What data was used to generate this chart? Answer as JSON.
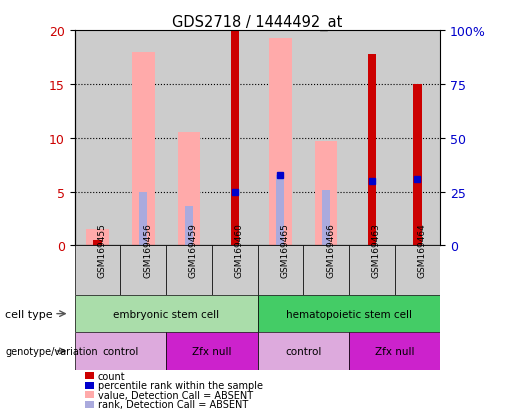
{
  "title": "GDS2718 / 1444492_at",
  "samples": [
    "GSM169455",
    "GSM169456",
    "GSM169459",
    "GSM169460",
    "GSM169465",
    "GSM169466",
    "GSM169463",
    "GSM169464"
  ],
  "pink_bar": [
    1.5,
    18.0,
    10.5,
    0,
    19.3,
    9.7,
    0,
    0
  ],
  "red_bar": [
    0.5,
    0,
    0,
    20.0,
    0,
    0,
    17.8,
    15.0
  ],
  "blue_val": [
    0,
    0,
    0,
    5.0,
    6.5,
    0,
    6.0,
    6.2
  ],
  "lblue_val": [
    0.2,
    5.0,
    3.7,
    0,
    6.5,
    5.1,
    0,
    0
  ],
  "has_pink": [
    true,
    true,
    true,
    false,
    true,
    true,
    false,
    false
  ],
  "has_red": [
    true,
    false,
    false,
    true,
    false,
    false,
    true,
    true
  ],
  "has_blue": [
    false,
    false,
    false,
    true,
    true,
    false,
    true,
    true
  ],
  "has_lblue": [
    true,
    true,
    true,
    false,
    true,
    true,
    false,
    false
  ],
  "has_both_pink_red": [
    true,
    false,
    false,
    false,
    false,
    false,
    false,
    false
  ],
  "ylim": [
    0,
    20
  ],
  "y2lim": [
    0,
    100
  ],
  "yticks": [
    0,
    5,
    10,
    15,
    20
  ],
  "y2ticks": [
    0,
    25,
    50,
    75,
    100
  ],
  "y2labels": [
    "0",
    "25",
    "50",
    "75",
    "100%"
  ],
  "cell_type_groups": [
    {
      "label": "embryonic stem cell",
      "start": 0,
      "end": 4,
      "color": "#aaddaa"
    },
    {
      "label": "hematopoietic stem cell",
      "start": 4,
      "end": 8,
      "color": "#44cc66"
    }
  ],
  "genotype_groups": [
    {
      "label": "control",
      "start": 0,
      "end": 2,
      "color": "#ddaadd"
    },
    {
      "label": "Zfx null",
      "start": 2,
      "end": 4,
      "color": "#cc22cc"
    },
    {
      "label": "control",
      "start": 4,
      "end": 6,
      "color": "#ddaadd"
    },
    {
      "label": "Zfx null",
      "start": 6,
      "end": 8,
      "color": "#cc22cc"
    }
  ],
  "color_red": "#cc0000",
  "color_pink": "#ffaaaa",
  "color_blue": "#0000cc",
  "color_lblue": "#aaaadd",
  "col_bg": "#cccccc",
  "legend_items": [
    [
      "#cc0000",
      "count"
    ],
    [
      "#0000cc",
      "percentile rank within the sample"
    ],
    [
      "#ffaaaa",
      "value, Detection Call = ABSENT"
    ],
    [
      "#aaaadd",
      "rank, Detection Call = ABSENT"
    ]
  ]
}
